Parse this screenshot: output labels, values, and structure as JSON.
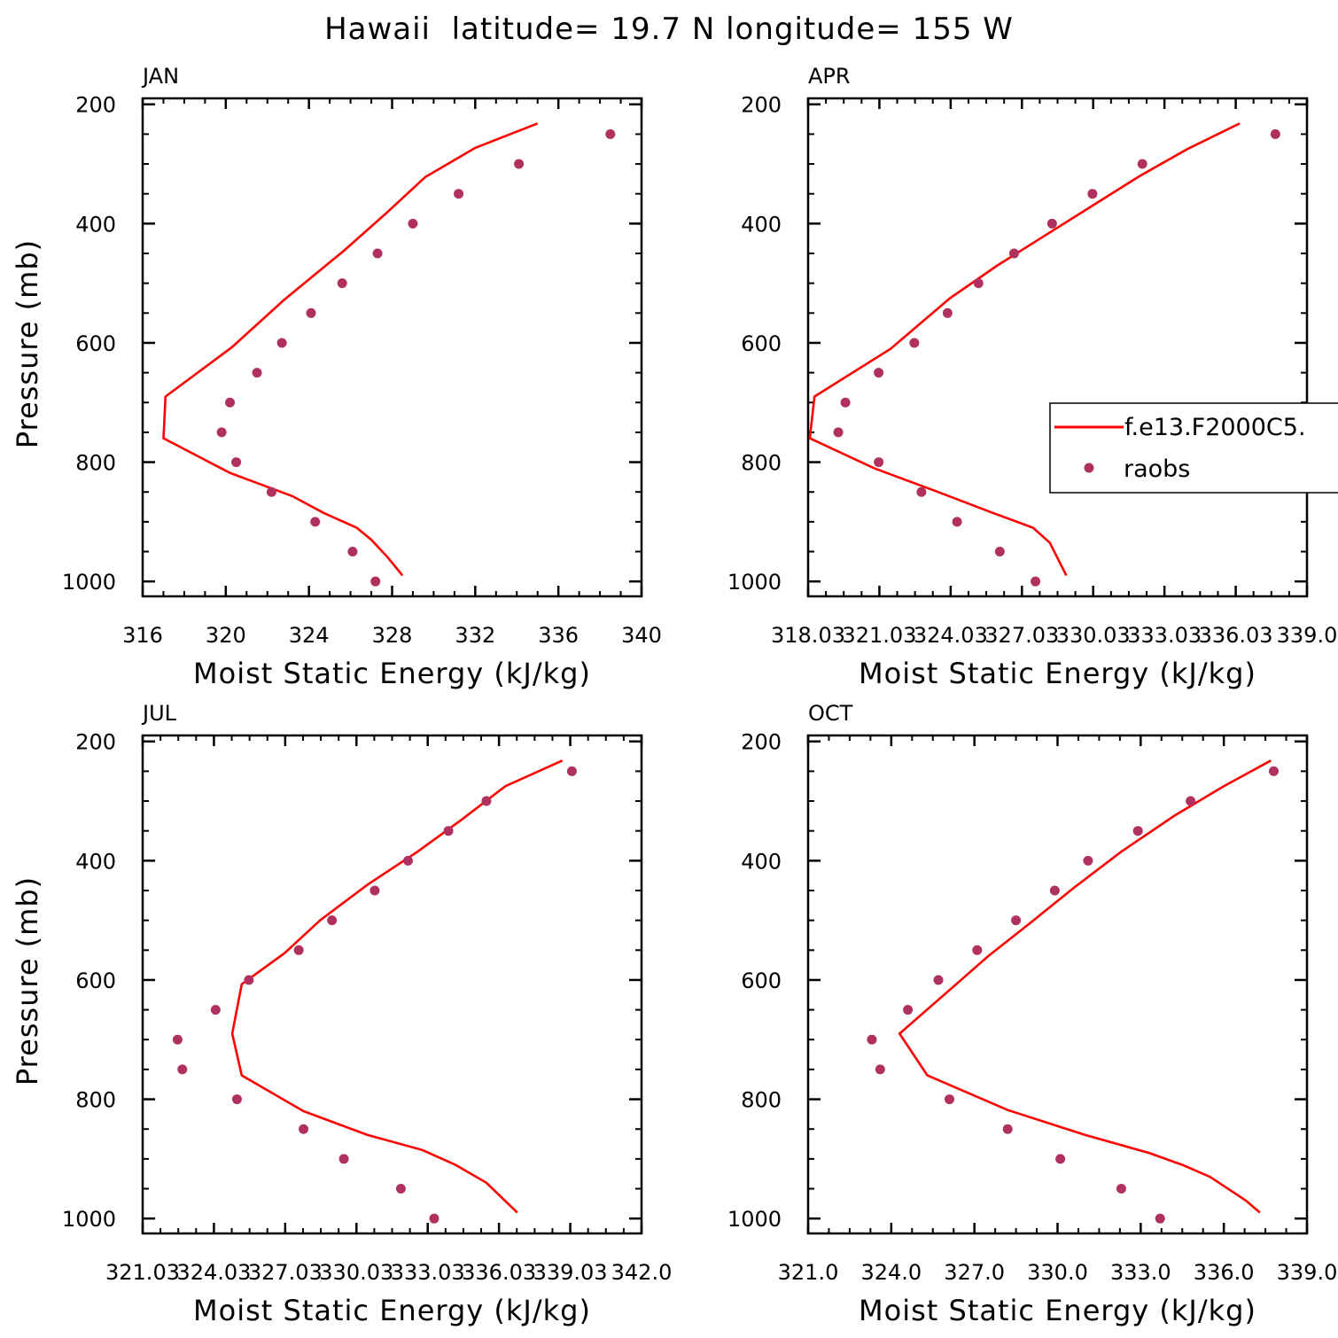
{
  "figure": {
    "title": "Hawaii  latitude= 19.7 N longitude= 155 W"
  },
  "legend": {
    "model_label": "f.e13.F2000C5.",
    "obs_label": "raobs"
  },
  "colors": {
    "model": "#ff0000",
    "obs": "#b03060",
    "axes": "#000000"
  },
  "chart_data": [
    {
      "type": "line",
      "panel": "JAN",
      "xlabel": "Moist Static Energy (kJ/kg)",
      "ylabel": "Pressure (mb)",
      "xlim": [
        316,
        340
      ],
      "ylim": [
        1000,
        200
      ],
      "xticks": [
        316,
        320,
        324,
        328,
        332,
        336,
        340
      ],
      "xtick_labels": [
        "316",
        "320",
        "324",
        "328",
        "332",
        "336",
        "340"
      ],
      "yticks": [
        200,
        400,
        600,
        800,
        1000
      ],
      "ytick_labels": [
        "200",
        "400",
        "600",
        "800",
        "1000"
      ],
      "series": [
        {
          "name": "f.e13.F2000C5.",
          "mode": "line",
          "x": [
            335.0,
            332.0,
            329.6,
            327.7,
            325.7,
            322.8,
            320.3,
            317.1,
            317.0,
            320.2,
            323.2,
            324.7,
            326.3,
            327.0,
            327.8,
            328.5
          ],
          "y": [
            232,
            273,
            322,
            383,
            445,
            528,
            607,
            690,
            760,
            818,
            857,
            885,
            910,
            930,
            960,
            990
          ]
        },
        {
          "name": "raobs",
          "mode": "scatter",
          "x": [
            338.5,
            334.1,
            331.2,
            329.0,
            327.3,
            325.6,
            324.1,
            322.7,
            321.5,
            320.2,
            319.8,
            320.5,
            322.2,
            324.3,
            326.1,
            327.2
          ],
          "y": [
            250,
            300,
            350,
            400,
            450,
            500,
            550,
            600,
            650,
            700,
            750,
            800,
            850,
            900,
            950,
            1000
          ]
        }
      ]
    },
    {
      "type": "line",
      "panel": "APR",
      "xlabel": "Moist Static Energy (kJ/kg)",
      "ylabel": "",
      "xlim": [
        318.03,
        339.03
      ],
      "ylim": [
        1000,
        200
      ],
      "xticks": [
        318.03,
        321.03,
        324.03,
        327.03,
        330.03,
        333.03,
        336.03,
        339.03
      ],
      "xtick_labels": [
        "318.03",
        "321.03",
        "324.03",
        "327.03",
        "330.03",
        "333.03",
        "336.03",
        "339.0"
      ],
      "yticks": [
        200,
        400,
        600,
        800,
        1000
      ],
      "ytick_labels": [
        "200",
        "400",
        "600",
        "800",
        "1000"
      ],
      "series": [
        {
          "name": "f.e13.F2000C5.",
          "mode": "line",
          "x": [
            336.2,
            334.0,
            332.0,
            330.0,
            328.0,
            326.0,
            324.0,
            321.5,
            318.3,
            318.1,
            320.8,
            323.5,
            325.8,
            327.5,
            328.2,
            328.9
          ],
          "y": [
            232,
            275,
            320,
            370,
            420,
            470,
            525,
            610,
            690,
            760,
            810,
            850,
            885,
            910,
            935,
            990
          ]
        },
        {
          "name": "raobs",
          "mode": "scatter",
          "x": [
            337.7,
            332.1,
            330.0,
            328.3,
            326.7,
            325.2,
            323.9,
            322.5,
            321.0,
            319.6,
            319.3,
            321.0,
            322.8,
            324.3,
            326.1,
            327.6
          ],
          "y": [
            250,
            300,
            350,
            400,
            450,
            500,
            550,
            600,
            650,
            700,
            750,
            800,
            850,
            900,
            950,
            1000
          ]
        }
      ]
    },
    {
      "type": "line",
      "panel": "JUL",
      "xlabel": "Moist Static Energy (kJ/kg)",
      "ylabel": "Pressure (mb)",
      "xlim": [
        321.03,
        342.03
      ],
      "ylim": [
        1000,
        200
      ],
      "xticks": [
        321.03,
        324.03,
        327.03,
        330.03,
        333.03,
        336.03,
        339.03,
        342.03
      ],
      "xtick_labels": [
        "321.03",
        "324.03",
        "327.03",
        "330.03",
        "333.03",
        "336.03",
        "339.03",
        "342.0"
      ],
      "yticks": [
        200,
        400,
        600,
        800,
        1000
      ],
      "ytick_labels": [
        "200",
        "400",
        "600",
        "800",
        "1000"
      ],
      "series": [
        {
          "name": "f.e13.F2000C5.",
          "mode": "line",
          "x": [
            338.7,
            336.3,
            334.5,
            332.6,
            330.5,
            328.5,
            327.0,
            325.2,
            324.8,
            325.2,
            327.8,
            330.5,
            332.8,
            334.2,
            335.5,
            336.8
          ],
          "y": [
            232,
            275,
            330,
            385,
            440,
            500,
            555,
            607,
            690,
            760,
            820,
            860,
            885,
            910,
            940,
            990
          ]
        },
        {
          "name": "raobs",
          "mode": "scatter",
          "x": [
            339.1,
            335.5,
            333.9,
            332.2,
            330.8,
            329.0,
            327.6,
            325.5,
            324.1,
            322.5,
            322.7,
            325.0,
            327.8,
            329.5,
            331.9,
            333.3
          ],
          "y": [
            250,
            300,
            350,
            400,
            450,
            500,
            550,
            600,
            650,
            700,
            750,
            800,
            850,
            900,
            950,
            1000
          ]
        }
      ]
    },
    {
      "type": "line",
      "panel": "OCT",
      "xlabel": "Moist Static Energy (kJ/kg)",
      "ylabel": "",
      "xlim": [
        321.0,
        339.0
      ],
      "ylim": [
        1000,
        200
      ],
      "xticks": [
        321.0,
        324.0,
        327.0,
        330.0,
        333.0,
        336.0,
        339.0
      ],
      "xtick_labels": [
        "321.0",
        "324.0",
        "327.0",
        "330.0",
        "333.0",
        "336.0",
        "339.0"
      ],
      "yticks": [
        200,
        400,
        600,
        800,
        1000
      ],
      "ytick_labels": [
        "200",
        "400",
        "600",
        "800",
        "1000"
      ],
      "series": [
        {
          "name": "f.e13.F2000C5.",
          "mode": "line",
          "x": [
            337.7,
            336.0,
            334.2,
            332.3,
            330.6,
            329.0,
            327.5,
            326.2,
            324.3,
            325.3,
            328.2,
            331.0,
            333.3,
            334.5,
            335.5,
            336.8,
            337.3
          ],
          "y": [
            232,
            275,
            325,
            385,
            445,
            505,
            560,
            613,
            690,
            760,
            818,
            860,
            890,
            910,
            930,
            970,
            990
          ]
        },
        {
          "name": "raobs",
          "mode": "scatter",
          "x": [
            337.8,
            334.8,
            332.9,
            331.1,
            329.9,
            328.5,
            327.1,
            325.7,
            324.6,
            323.3,
            323.6,
            326.1,
            328.2,
            330.1,
            332.3,
            333.7
          ],
          "y": [
            250,
            300,
            350,
            400,
            450,
            500,
            550,
            600,
            650,
            700,
            750,
            800,
            850,
            900,
            950,
            1000
          ]
        }
      ]
    }
  ]
}
